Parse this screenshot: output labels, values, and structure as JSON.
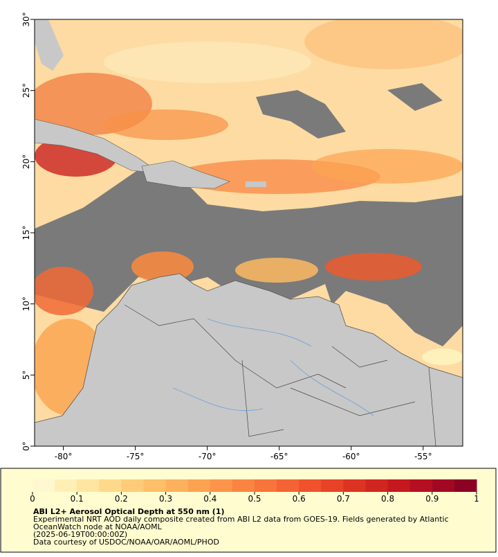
{
  "map": {
    "xlim": [
      -82,
      -52.25
    ],
    "ylim": [
      0,
      30
    ],
    "xticks": [
      {
        "value": -80,
        "label": "-80°"
      },
      {
        "value": -75,
        "label": "-75°"
      },
      {
        "value": -70,
        "label": "-70°"
      },
      {
        "value": -65,
        "label": "-65°"
      },
      {
        "value": -60,
        "label": "-60°"
      },
      {
        "value": -55,
        "label": "-55°"
      }
    ],
    "yticks": [
      {
        "value": 0,
        "label": "0°"
      },
      {
        "value": 5,
        "label": "5°"
      },
      {
        "value": 10,
        "label": "10°"
      },
      {
        "value": 15,
        "label": "15°"
      },
      {
        "value": 20,
        "label": "20°"
      },
      {
        "value": 25,
        "label": "25°"
      },
      {
        "value": 30,
        "label": "30°"
      }
    ]
  },
  "colorbar": {
    "range": [
      0,
      1
    ],
    "ticks": [
      0,
      0.1,
      0.2,
      0.3,
      0.4,
      0.5,
      0.6,
      0.7,
      0.8,
      0.9,
      1
    ],
    "colors": [
      "#fff7cf",
      "#ffefb5",
      "#fee6a0",
      "#fed98a",
      "#fecc78",
      "#fdbf68",
      "#fdb15d",
      "#fca352",
      "#fc944a",
      "#fb8442",
      "#f8743a",
      "#f46333",
      "#ef522d",
      "#e84227",
      "#de3322",
      "#d2251f",
      "#c5181f",
      "#b60f22",
      "#a30823",
      "#8c0224"
    ]
  },
  "caption": {
    "title": "ABI L2+ Aerosol Optical Depth at 550 nm (1)",
    "lines": [
      "Experimental NRT AOD daily composite created from ABI L2 data from GOES-19. Fields generated by Atlantic",
      "OceanWatch node at NOAA/AOML",
      "(2025-06-19T00:00:00Z)",
      "Data courtesy of USDOC/NOAA/OAR/AOML/PHOD"
    ]
  }
}
